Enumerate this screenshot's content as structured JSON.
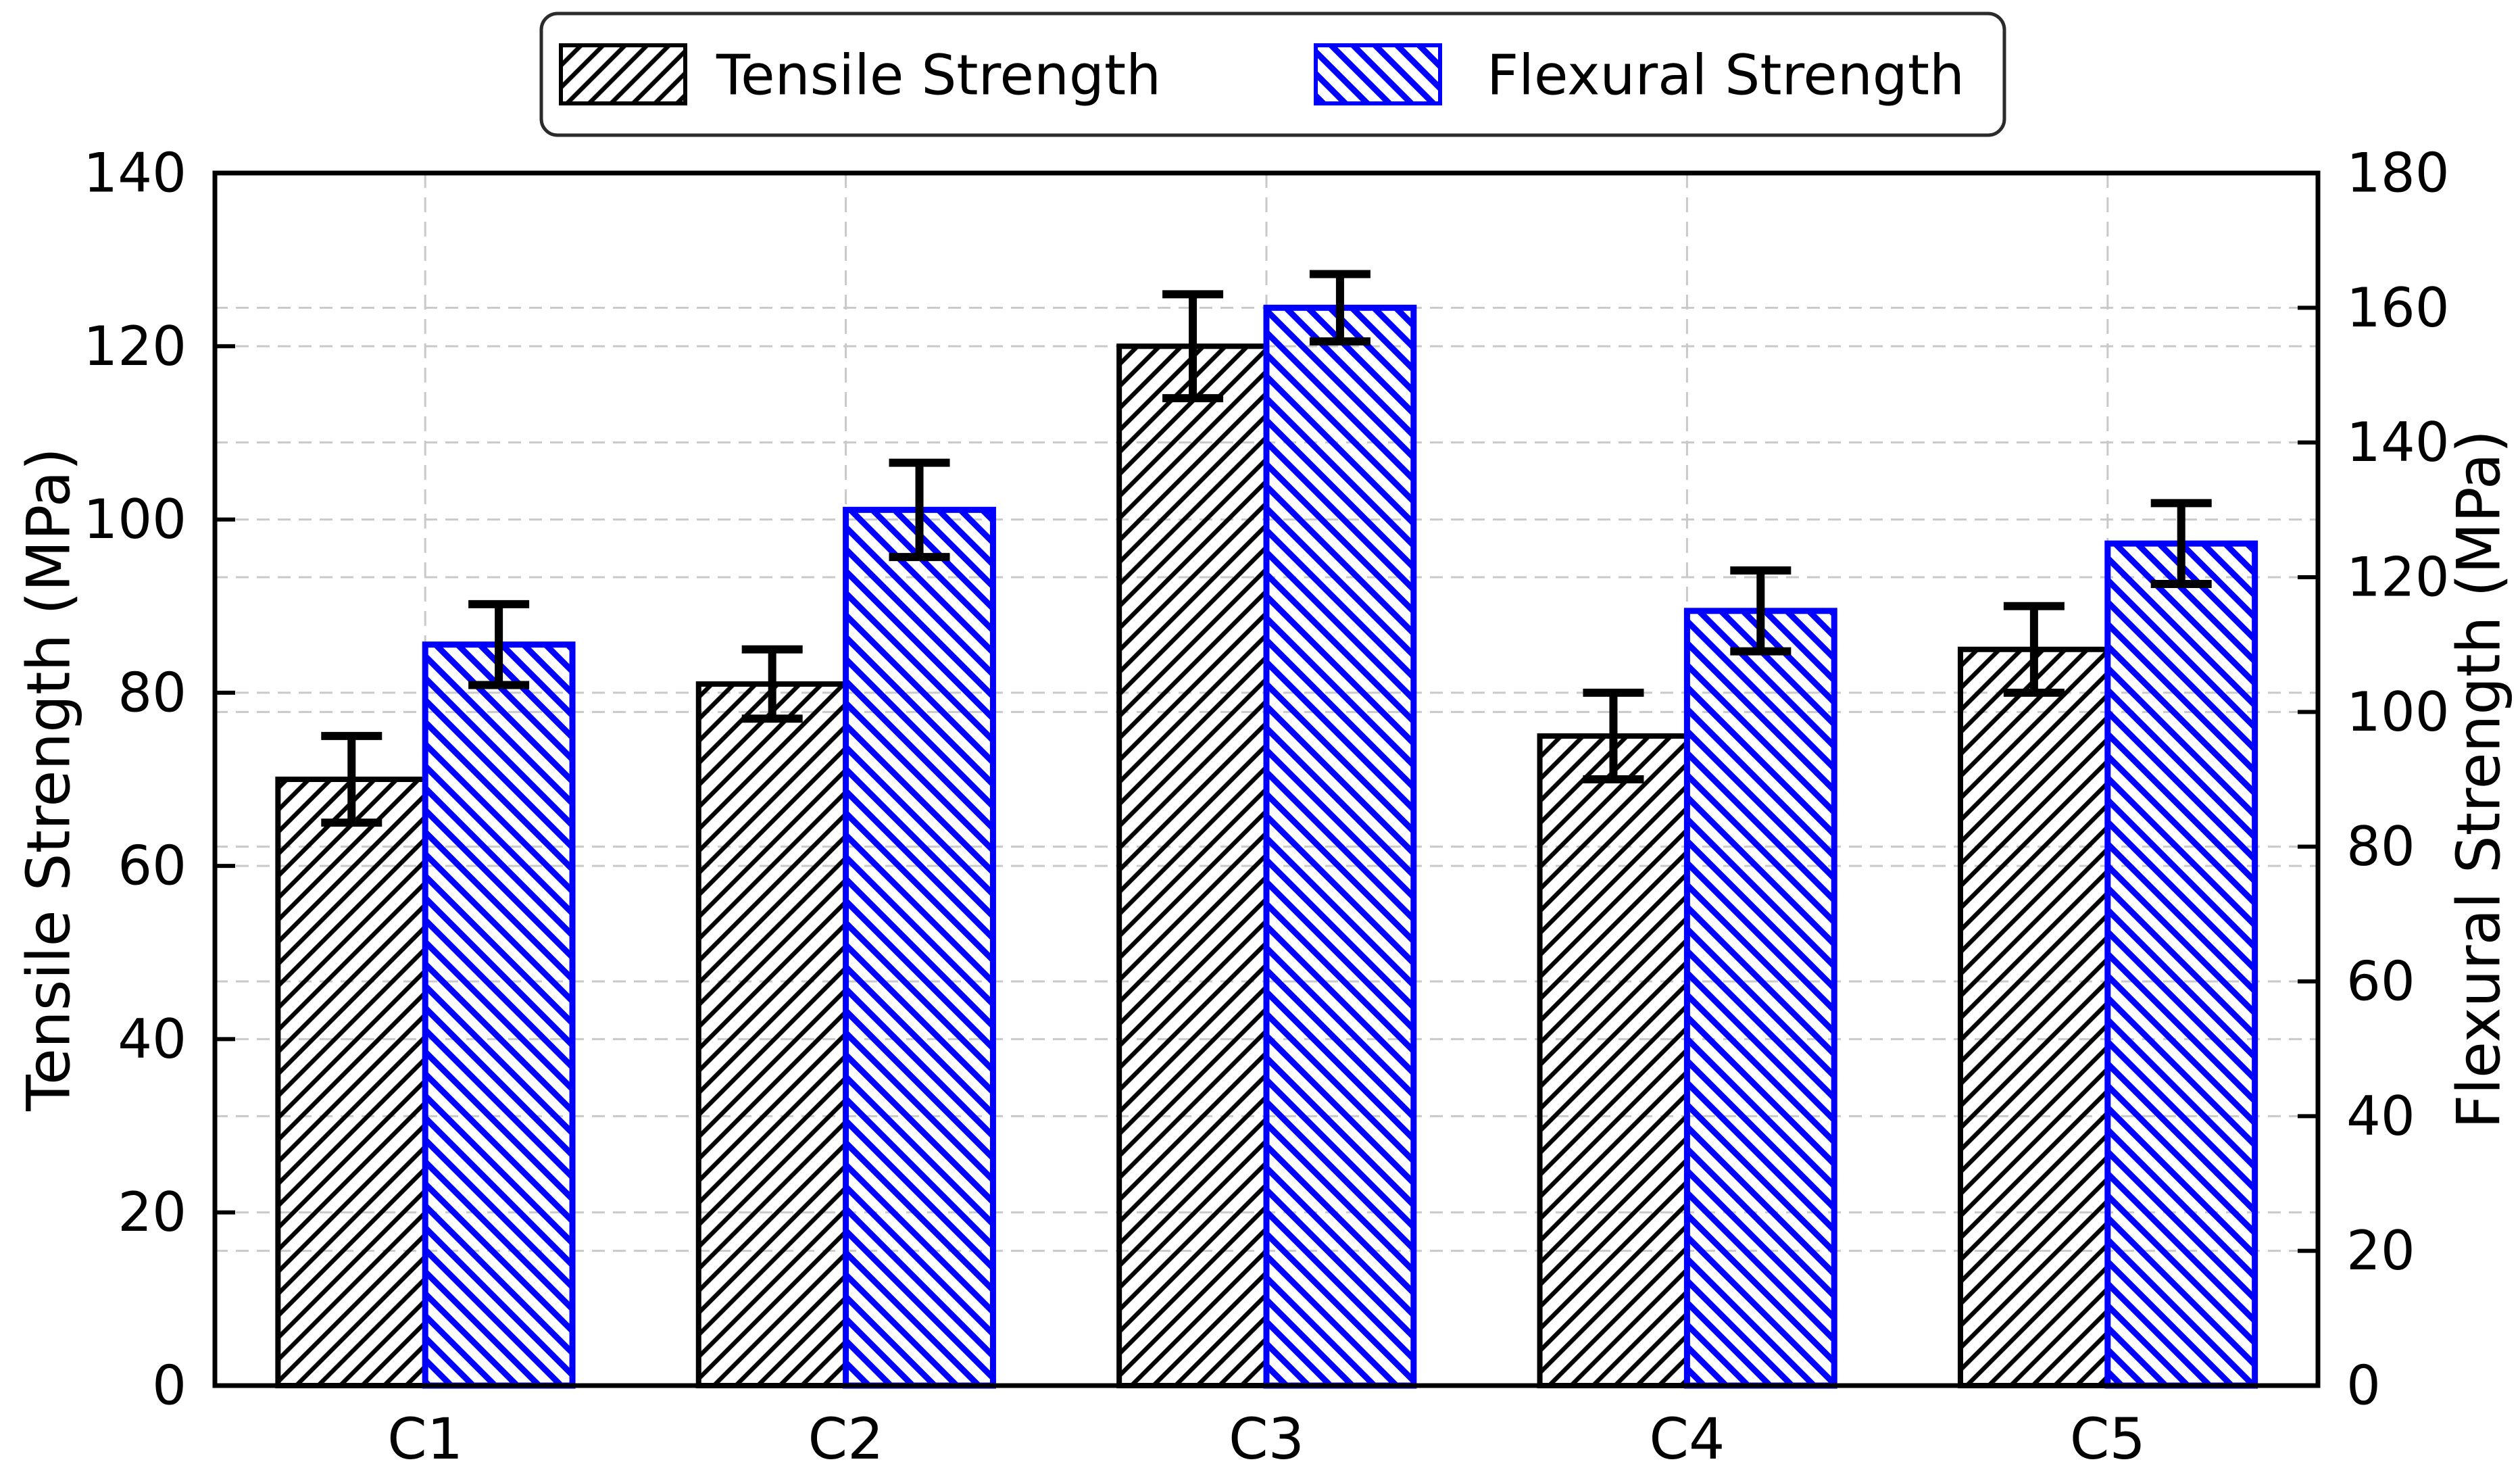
{
  "chart_data": {
    "type": "bar",
    "title": "",
    "categories": [
      "C1",
      "C2",
      "C3",
      "C4",
      "C5"
    ],
    "series": [
      {
        "name": "Tensile Strength",
        "axis": "left",
        "color": "#000000",
        "hatch": "/",
        "values": [
          70,
          81,
          120,
          75,
          85
        ],
        "errors": [
          5,
          4,
          6,
          5,
          5
        ]
      },
      {
        "name": "Flexural Strength",
        "axis": "right",
        "color": "#0000ff",
        "hatch": "\\",
        "values": [
          110,
          130,
          160,
          115,
          125
        ],
        "errors": [
          6,
          7,
          5,
          6,
          6
        ]
      }
    ],
    "left_axis": {
      "label": "Tensile Strength (MPa)",
      "min": 0,
      "max": 140,
      "ticks": [
        0,
        20,
        40,
        60,
        80,
        100,
        120,
        140
      ]
    },
    "right_axis": {
      "label": "Flexural Strength (MPa)",
      "min": 0,
      "max": 180,
      "ticks": [
        0,
        20,
        40,
        60,
        80,
        100,
        120,
        140,
        160,
        180
      ]
    },
    "grid": {
      "horizontal": true,
      "vertical": true,
      "color": "#c9c9c9",
      "style": "dashed"
    },
    "legend": {
      "position": "top",
      "entries": [
        "Tensile Strength",
        "Flexural Strength"
      ],
      "border_color": "#2b2b2b"
    },
    "bar_width_fraction": 0.35,
    "error_bar_color": "#000000"
  }
}
